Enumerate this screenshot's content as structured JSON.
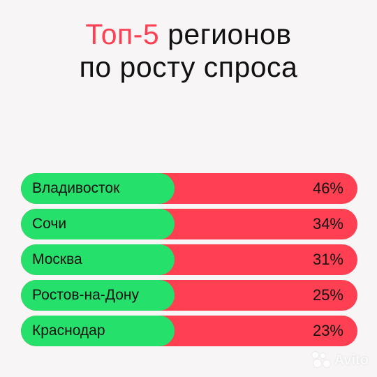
{
  "title": {
    "accent": "Топ-5",
    "line1_rest": " регионов",
    "line2": "по росту спроса"
  },
  "chart_data": {
    "type": "bar",
    "categories": [
      "Владивосток",
      "Сочи",
      "Москва",
      "Ростов-на-Дону",
      "Краснодар"
    ],
    "values": [
      46,
      34,
      31,
      25,
      23
    ],
    "value_labels": [
      "46%",
      "34%",
      "31%",
      "25%",
      "23%"
    ],
    "ylabel": "",
    "xlabel": ""
  },
  "colors": {
    "accent": "#ff4053",
    "label_pill": "#25e06a",
    "background": "#f7f5f5"
  },
  "watermark": {
    "text": "Avito",
    "icon": "avito-dots-icon"
  }
}
